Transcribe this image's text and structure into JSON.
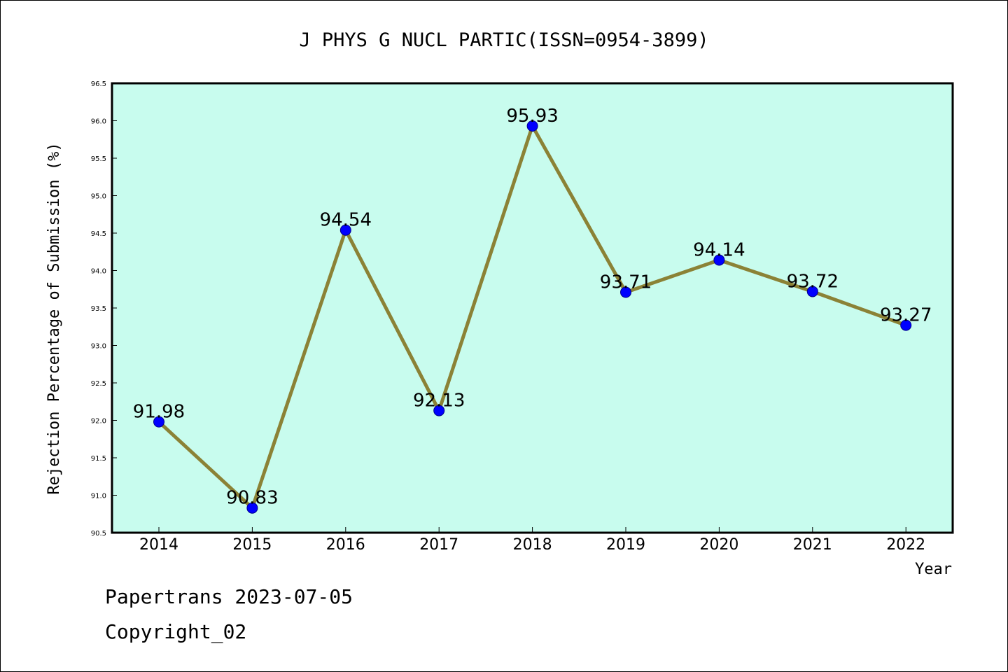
{
  "chart_data": {
    "type": "line",
    "title": "J PHYS G NUCL PARTIC(ISSN=0954-3899)",
    "xlabel": "Year",
    "ylabel": "Rejection Percentage of Submission (%)",
    "categories": [
      "2014",
      "2015",
      "2016",
      "2017",
      "2018",
      "2019",
      "2020",
      "2021",
      "2022"
    ],
    "series": [
      {
        "values": [
          91.98,
          90.83,
          94.54,
          92.13,
          95.93,
          93.71,
          94.14,
          93.72,
          93.27
        ],
        "labels": [
          "91.98",
          "90.83",
          "94.54",
          "92.13",
          "95.93",
          "93.71",
          "94.14",
          "93.72",
          "93.27"
        ]
      }
    ],
    "ylim": [
      90.5,
      96.5
    ],
    "yticks": [
      "90.5",
      "91.0",
      "91.5",
      "92.0",
      "92.5",
      "93.0",
      "93.5",
      "94.0",
      "94.5",
      "95.0",
      "95.5",
      "96.0",
      "96.5"
    ],
    "grid": false,
    "colors": {
      "plot_background": "#c8fcee",
      "line": "#8b8236",
      "marker": "#0000ff",
      "marker_edge": "#00008b"
    }
  },
  "footer": {
    "line1": "Papertrans 2023-07-05",
    "line2": "Copyright_02"
  }
}
